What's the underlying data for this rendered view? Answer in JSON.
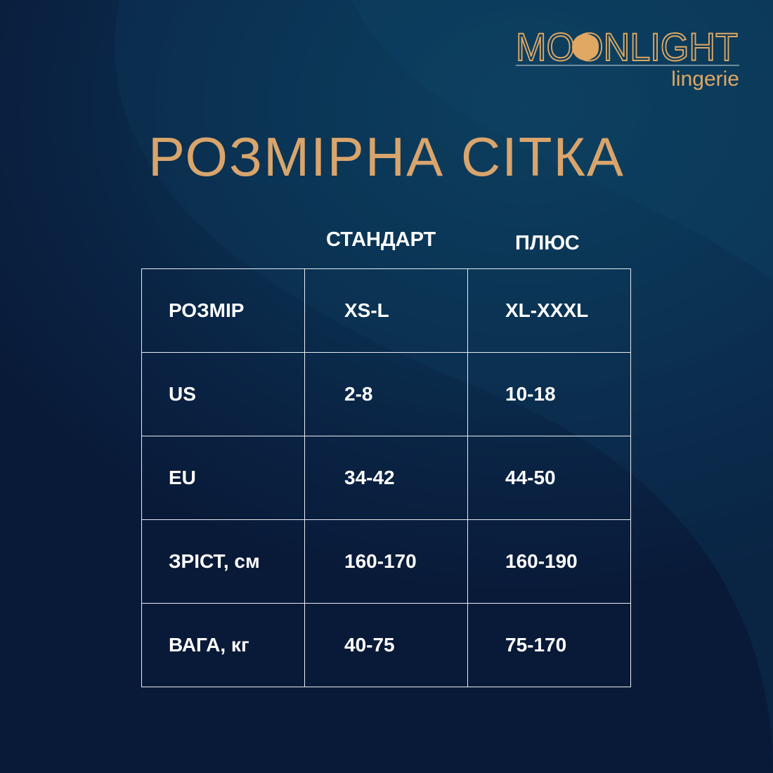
{
  "brand": {
    "name": "MOONLIGHT",
    "tagline": "lingerie",
    "color": "#e0a862"
  },
  "title": "РОЗМІРНА СІТКА",
  "columns": [
    "СТАНДАРТ",
    "ПЛЮС"
  ],
  "rows": [
    {
      "label": "РОЗМІР",
      "standard": "XS-L",
      "plus": "XL-XXXL"
    },
    {
      "label": "US",
      "standard": "2-8",
      "plus": "10-18"
    },
    {
      "label": "EU",
      "standard": "34-42",
      "plus": "44-50"
    },
    {
      "label": "ЗРІСТ, см",
      "standard": "160-170",
      "plus": "160-190"
    },
    {
      "label": "ВАГА, кг",
      "standard": "40-75",
      "plus": "75-170"
    }
  ],
  "colors": {
    "accent": "#d9a56c",
    "background": "#0a2445",
    "text": "#ffffff"
  }
}
